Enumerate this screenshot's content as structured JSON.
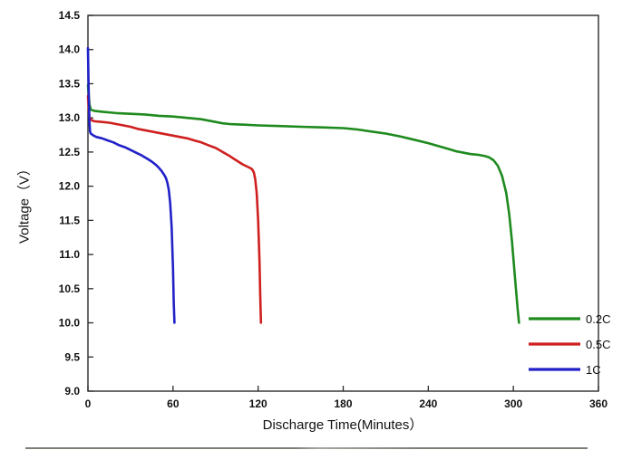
{
  "chart_data": {
    "type": "line",
    "title": "",
    "xlabel": "Discharge Time(Minutes）",
    "ylabel": "Voltage（V）",
    "xlim": [
      0,
      360
    ],
    "ylim": [
      9.0,
      14.5
    ],
    "xticks": [
      "0",
      "60",
      "120",
      "180",
      "240",
      "300",
      "360"
    ],
    "yticks": [
      "9.0",
      "9.5",
      "10.0",
      "10.5",
      "11.0",
      "11.5",
      "12.0",
      "12.5",
      "13.0",
      "13.5",
      "14.0",
      "14.5"
    ],
    "grid": false,
    "legend_position": "bottom-right",
    "frame_color": "#2a2a2a",
    "line_width": 2.6,
    "series": [
      {
        "name": "0.2C",
        "color": "#1e8a1e",
        "points": [
          [
            0,
            13.48
          ],
          [
            1,
            13.2
          ],
          [
            2,
            13.12
          ],
          [
            5,
            13.1
          ],
          [
            10,
            13.09
          ],
          [
            20,
            13.07
          ],
          [
            30,
            13.06
          ],
          [
            40,
            13.05
          ],
          [
            50,
            13.03
          ],
          [
            60,
            13.02
          ],
          [
            70,
            13.0
          ],
          [
            80,
            12.98
          ],
          [
            85,
            12.96
          ],
          [
            90,
            12.94
          ],
          [
            95,
            12.92
          ],
          [
            100,
            12.91
          ],
          [
            110,
            12.9
          ],
          [
            120,
            12.89
          ],
          [
            135,
            12.88
          ],
          [
            150,
            12.87
          ],
          [
            165,
            12.86
          ],
          [
            180,
            12.85
          ],
          [
            190,
            12.83
          ],
          [
            200,
            12.8
          ],
          [
            210,
            12.77
          ],
          [
            220,
            12.73
          ],
          [
            230,
            12.68
          ],
          [
            240,
            12.63
          ],
          [
            250,
            12.57
          ],
          [
            255,
            12.54
          ],
          [
            260,
            12.51
          ],
          [
            265,
            12.49
          ],
          [
            270,
            12.47
          ],
          [
            275,
            12.46
          ],
          [
            280,
            12.44
          ],
          [
            283,
            12.42
          ],
          [
            286,
            12.38
          ],
          [
            289,
            12.3
          ],
          [
            292,
            12.15
          ],
          [
            295,
            11.9
          ],
          [
            297,
            11.6
          ],
          [
            299,
            11.2
          ],
          [
            301,
            10.7
          ],
          [
            303,
            10.2
          ],
          [
            304,
            10.0
          ]
        ]
      },
      {
        "name": "0.5C",
        "color": "#cf1f1f",
        "points": [
          [
            0,
            13.32
          ],
          [
            1,
            13.0
          ],
          [
            3,
            12.96
          ],
          [
            5,
            12.95
          ],
          [
            10,
            12.94
          ],
          [
            15,
            12.93
          ],
          [
            20,
            12.91
          ],
          [
            25,
            12.89
          ],
          [
            30,
            12.87
          ],
          [
            35,
            12.84
          ],
          [
            40,
            12.82
          ],
          [
            45,
            12.8
          ],
          [
            50,
            12.78
          ],
          [
            55,
            12.76
          ],
          [
            60,
            12.74
          ],
          [
            65,
            12.72
          ],
          [
            70,
            12.7
          ],
          [
            75,
            12.67
          ],
          [
            80,
            12.64
          ],
          [
            85,
            12.6
          ],
          [
            90,
            12.56
          ],
          [
            95,
            12.5
          ],
          [
            100,
            12.44
          ],
          [
            103,
            12.4
          ],
          [
            106,
            12.36
          ],
          [
            109,
            12.32
          ],
          [
            111,
            12.3
          ],
          [
            113,
            12.28
          ],
          [
            115,
            12.26
          ],
          [
            116,
            12.24
          ],
          [
            117,
            12.2
          ],
          [
            118,
            12.1
          ],
          [
            119,
            11.9
          ],
          [
            120,
            11.5
          ],
          [
            121,
            10.9
          ],
          [
            121.5,
            10.4
          ],
          [
            122,
            10.0
          ]
        ]
      },
      {
        "name": "1C",
        "color": "#2121c8",
        "points": [
          [
            0,
            14.02
          ],
          [
            0.5,
            13.4
          ],
          [
            1,
            12.95
          ],
          [
            1.5,
            12.8
          ],
          [
            2,
            12.77
          ],
          [
            4,
            12.74
          ],
          [
            6,
            12.72
          ],
          [
            10,
            12.7
          ],
          [
            14,
            12.67
          ],
          [
            18,
            12.64
          ],
          [
            22,
            12.6
          ],
          [
            26,
            12.57
          ],
          [
            30,
            12.53
          ],
          [
            34,
            12.49
          ],
          [
            38,
            12.45
          ],
          [
            42,
            12.4
          ],
          [
            45,
            12.36
          ],
          [
            48,
            12.31
          ],
          [
            50,
            12.27
          ],
          [
            52,
            12.22
          ],
          [
            54,
            12.16
          ],
          [
            55,
            12.12
          ],
          [
            56,
            12.05
          ],
          [
            57,
            11.95
          ],
          [
            58,
            11.75
          ],
          [
            59,
            11.4
          ],
          [
            60,
            10.8
          ],
          [
            60.5,
            10.3
          ],
          [
            61,
            10.0
          ]
        ]
      }
    ]
  }
}
